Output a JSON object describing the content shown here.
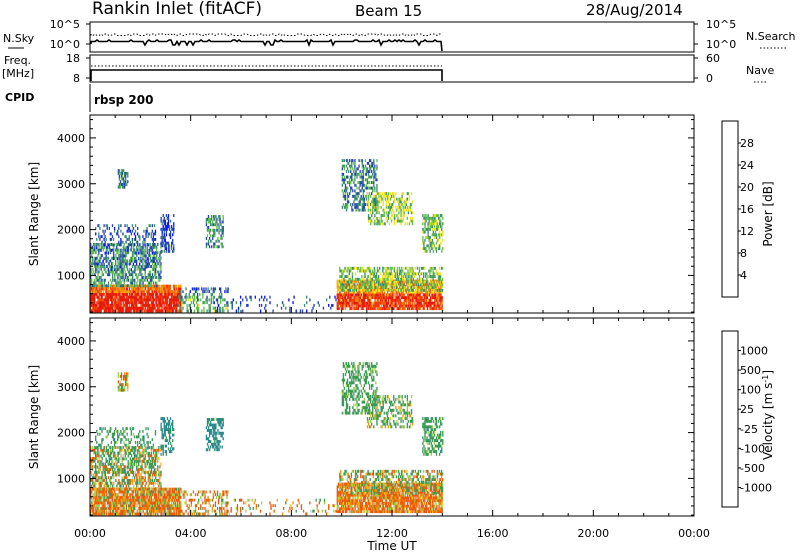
{
  "header": {
    "station": "Rankin Inlet (fitACF)",
    "beam": "Beam 15",
    "date": "28/Aug/2014"
  },
  "params": {
    "nsky_label": "N.Sky",
    "nsearch_label": "N.Search",
    "left_ticks": [
      "10^5",
      "10^0"
    ],
    "right_ticks": [
      "10^5",
      "10^0"
    ],
    "freq_label_top": "Freq.",
    "freq_label_unit": "[MHz]",
    "freq_ticks": [
      "18",
      "8"
    ],
    "nave_label": "Nave",
    "nave_ticks": [
      "60",
      "0"
    ],
    "cpid_label": "CPID",
    "cpid_value": "rbsp 200"
  },
  "colors": {
    "power": [
      "#0a14ff",
      "#2646b4",
      "#3e8f6e",
      "#63c04a",
      "#f0e21a",
      "#f59d0e",
      "#f25b0b",
      "#e51b0b"
    ],
    "velocity": [
      "#e51b0b",
      "#ee5a0a",
      "#f3960c",
      "#f4c516",
      "#c8c8c8",
      "#9ad34a",
      "#3a9a56",
      "#2a8a8c",
      "#1c3fb0"
    ]
  },
  "chart_data": [
    {
      "type": "heatmap",
      "name": "power",
      "ylabel": "Slant Range [km]",
      "xlabel": "Time UT",
      "xlim": [
        "00:00",
        "24:00"
      ],
      "ylim": [
        180,
        4500
      ],
      "x_ticks": [
        "00:00",
        "04:00",
        "08:00",
        "12:00",
        "16:00",
        "20:00",
        "00:00"
      ],
      "y_ticks": [
        1000,
        2000,
        3000,
        4000
      ],
      "colorbar": {
        "label": "Power [dB]",
        "ticks": [
          4,
          8,
          12,
          16,
          20,
          24,
          28
        ],
        "range": [
          0,
          32
        ]
      },
      "data_coverage": "00:00-14:00"
    },
    {
      "type": "heatmap",
      "name": "velocity",
      "ylabel": "Slant Range [km]",
      "xlabel": "Time UT",
      "xlim": [
        "00:00",
        "24:00"
      ],
      "ylim": [
        180,
        4500
      ],
      "x_ticks": [
        "00:00",
        "04:00",
        "08:00",
        "12:00",
        "16:00",
        "20:00",
        "00:00"
      ],
      "y_ticks": [
        1000,
        2000,
        3000,
        4000
      ],
      "colorbar": {
        "label": "Velocity",
        "label_unit": "[m s",
        "label_unit_exp": "-1",
        "label_unit_close": "]",
        "ticks": [
          "1000",
          "500",
          "100",
          "25",
          "-25",
          "-100",
          "-500",
          "-1000"
        ]
      },
      "data_coverage": "00:00-14:00"
    }
  ]
}
